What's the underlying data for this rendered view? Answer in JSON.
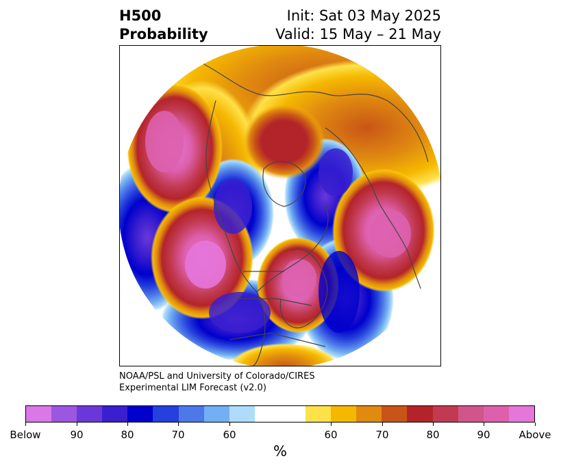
{
  "title": {
    "left_line1": "H500",
    "left_line2": "Probability",
    "right_line1": "Init: Sat 03 May 2025",
    "right_line2": "Valid: 15 May – 21 May"
  },
  "credit": {
    "line1": "NOAA/PSL and University of Colorado/CIRES",
    "line2": "Experimental LIM Forecast (v2.0)"
  },
  "colorbar": {
    "colors": [
      "#d978e6",
      "#9b57e0",
      "#6a38d8",
      "#3a1fcf",
      "#0000cc",
      "#2540dc",
      "#4d78e8",
      "#73aff2",
      "#afdcfb",
      "#ffffff",
      "#ffffff",
      "#ffe14a",
      "#f5b800",
      "#e08a10",
      "#c85517",
      "#b3242a",
      "#c23a52",
      "#d0558a",
      "#dd60ad",
      "#e576da"
    ],
    "tick_labels": [
      "Below",
      "90",
      "80",
      "70",
      "60",
      "60",
      "70",
      "80",
      "90",
      "Above"
    ],
    "unit": "%"
  },
  "legend_colors": {
    "below_strong": "#3a1fcf",
    "below_mid": "#2540dc",
    "below_light": "#afdcfb",
    "neutral": "#ffffff",
    "above_light": "#ffe14a",
    "above_mid": "#e08a10",
    "above_dark": "#b3242a",
    "above_strong": "#dd60ad"
  }
}
